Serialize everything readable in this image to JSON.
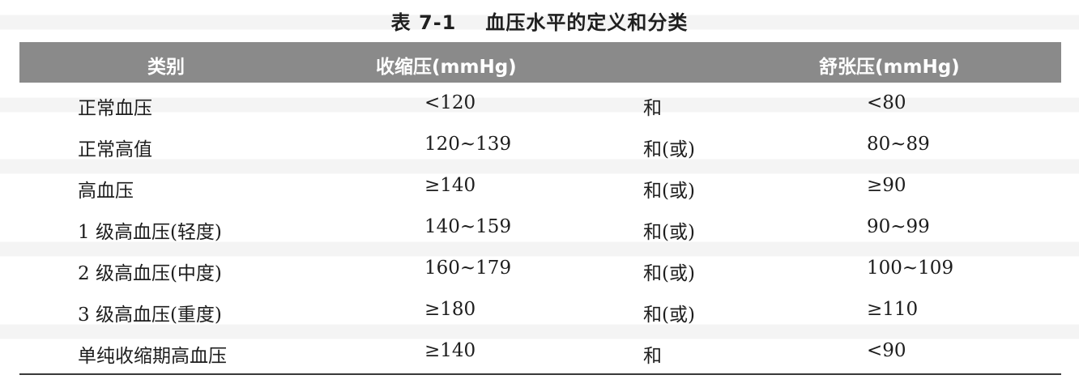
{
  "title": {
    "number": "表 7-1",
    "text": "血压水平的定义和分类"
  },
  "table": {
    "headers": {
      "category": "类别",
      "systolic": "收缩压(mmHg)",
      "diastolic": "舒张压(mmHg)"
    },
    "rows": [
      {
        "category": "正常血压",
        "systolic": "<120",
        "relation": "和",
        "diastolic": "<80"
      },
      {
        "category": "正常高值",
        "systolic": "120~139",
        "relation": "和(或)",
        "diastolic": "80~89"
      },
      {
        "category": "高血压",
        "systolic": "≥140",
        "relation": "和(或)",
        "diastolic": "≥90"
      },
      {
        "category": "1 级高血压(轻度)",
        "systolic": "140~159",
        "relation": "和(或)",
        "diastolic": "90~99"
      },
      {
        "category": "2 级高血压(中度)",
        "systolic": "160~179",
        "relation": "和(或)",
        "diastolic": "100~109"
      },
      {
        "category": "3 级高血压(重度)",
        "systolic": "≥180",
        "relation": "和(或)",
        "diastolic": "≥110"
      },
      {
        "category": "单纯收缩期高血压",
        "systolic": "≥140",
        "relation": "和",
        "diastolic": "<90"
      }
    ]
  }
}
